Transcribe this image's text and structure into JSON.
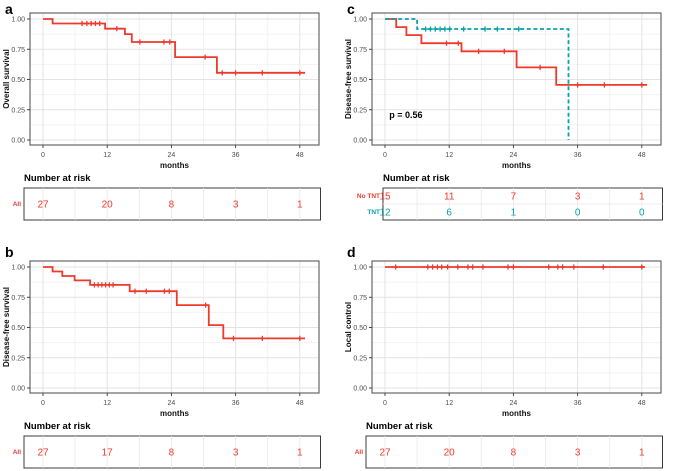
{
  "colors": {
    "red": "#EE3A2C",
    "teal": "#09A1AB",
    "axis_text": "#4d4d4d",
    "grid_major": "#e3e3e3",
    "grid_minor": "#f2f2f2",
    "panel_border": "#595959",
    "table_border": "#3c3c3c",
    "table_grid": "#e8e8e8"
  },
  "chart_data": [
    {
      "panel": "a",
      "type": "line",
      "subtype": "kaplan-meier-step",
      "ylabel": "Overall survival",
      "xlabel": "months",
      "x_ticks": [
        0,
        12,
        24,
        36,
        48
      ],
      "y_tick_labels": [
        "0.00",
        "0.25",
        "0.50",
        "0.75",
        "1.00"
      ],
      "xlim": [
        -2.4,
        51.6
      ],
      "ylim": [
        0,
        1
      ],
      "grid": true,
      "p_label": null,
      "series": [
        {
          "name": "All",
          "color_key": "red",
          "dashed": false,
          "steps": [
            [
              0,
              1
            ],
            [
              1.8,
              1
            ],
            [
              1.8,
              0.963
            ],
            [
              11.6,
              0.963
            ],
            [
              11.6,
              0.92
            ],
            [
              15.3,
              0.92
            ],
            [
              15.3,
              0.875
            ],
            [
              16.6,
              0.875
            ],
            [
              16.6,
              0.81
            ],
            [
              24.7,
              0.81
            ],
            [
              24.7,
              0.685
            ],
            [
              32.5,
              0.685
            ],
            [
              32.5,
              0.555
            ],
            [
              49,
              0.555
            ]
          ],
          "censors": [
            [
              7.3,
              0.963
            ],
            [
              8.2,
              0.963
            ],
            [
              9,
              0.963
            ],
            [
              9.8,
              0.963
            ],
            [
              10.6,
              0.963
            ],
            [
              13.8,
              0.92
            ],
            [
              18.1,
              0.81
            ],
            [
              22.6,
              0.81
            ],
            [
              23.7,
              0.81
            ],
            [
              30.3,
              0.685
            ],
            [
              33.5,
              0.555
            ],
            [
              36,
              0.555
            ],
            [
              41,
              0.555
            ],
            [
              48,
              0.555
            ]
          ]
        }
      ],
      "risk_table": {
        "title": "Number at risk",
        "rows": [
          {
            "label": "All",
            "color_key": "red",
            "values": [
              27,
              20,
              8,
              3,
              1
            ]
          }
        ]
      }
    },
    {
      "panel": "c",
      "type": "line",
      "subtype": "kaplan-meier-step",
      "ylabel": "Disease-free survival",
      "xlabel": "months",
      "x_ticks": [
        0,
        12,
        24,
        36,
        48
      ],
      "y_tick_labels": [
        "0.00",
        "0.25",
        "0.50",
        "0.75",
        "1.00"
      ],
      "xlim": [
        -2.4,
        51.6
      ],
      "ylim": [
        0,
        1
      ],
      "grid": true,
      "p_label": {
        "text": "p = 0.56",
        "x": 0.8,
        "y": 0.18
      },
      "series": [
        {
          "name": "No TNT",
          "color_key": "red",
          "dashed": false,
          "steps": [
            [
              0,
              1
            ],
            [
              2.1,
              1
            ],
            [
              2.1,
              0.933
            ],
            [
              4,
              0.933
            ],
            [
              4,
              0.867
            ],
            [
              6.8,
              0.867
            ],
            [
              6.8,
              0.8
            ],
            [
              14.3,
              0.8
            ],
            [
              14.3,
              0.733
            ],
            [
              24.6,
              0.733
            ],
            [
              24.6,
              0.6
            ],
            [
              32,
              0.6
            ],
            [
              32,
              0.455
            ],
            [
              49,
              0.455
            ]
          ],
          "censors": [
            [
              11.5,
              0.8
            ],
            [
              13.7,
              0.8
            ],
            [
              17.5,
              0.733
            ],
            [
              22.3,
              0.733
            ],
            [
              29,
              0.6
            ],
            [
              36,
              0.455
            ],
            [
              41,
              0.455
            ],
            [
              48,
              0.455
            ]
          ]
        },
        {
          "name": "TNT",
          "color_key": "teal",
          "dashed": true,
          "steps": [
            [
              0,
              1
            ],
            [
              6,
              1
            ],
            [
              6,
              0.917
            ],
            [
              34.3,
              0.917
            ],
            [
              34.3,
              0
            ]
          ],
          "censors": [
            [
              7.6,
              0.917
            ],
            [
              8.5,
              0.917
            ],
            [
              9.4,
              0.917
            ],
            [
              10.3,
              0.917
            ],
            [
              11.2,
              0.917
            ],
            [
              12.1,
              0.917
            ],
            [
              14.7,
              0.917
            ],
            [
              18.7,
              0.917
            ],
            [
              21,
              0.917
            ],
            [
              25,
              0.917
            ]
          ]
        }
      ],
      "risk_table": {
        "title": "Number at risk",
        "rows": [
          {
            "label": "No TNT",
            "color_key": "red",
            "values": [
              15,
              11,
              7,
              3,
              1
            ]
          },
          {
            "label": "TNT",
            "color_key": "teal",
            "values": [
              12,
              6,
              1,
              0,
              0
            ]
          }
        ]
      }
    },
    {
      "panel": "b",
      "type": "line",
      "subtype": "kaplan-meier-step",
      "ylabel": "Disease-free survival",
      "xlabel": "months",
      "x_ticks": [
        0,
        12,
        24,
        36,
        48
      ],
      "y_tick_labels": [
        "0.00",
        "0.25",
        "0.50",
        "0.75",
        "1.00"
      ],
      "xlim": [
        -2.4,
        51.6
      ],
      "ylim": [
        0,
        1
      ],
      "grid": true,
      "p_label": null,
      "series": [
        {
          "name": "All",
          "color_key": "red",
          "dashed": false,
          "steps": [
            [
              0,
              1
            ],
            [
              1.8,
              1
            ],
            [
              1.8,
              0.963
            ],
            [
              3.6,
              0.963
            ],
            [
              3.6,
              0.926
            ],
            [
              5.9,
              0.926
            ],
            [
              5.9,
              0.889
            ],
            [
              8.8,
              0.889
            ],
            [
              8.8,
              0.852
            ],
            [
              16.2,
              0.852
            ],
            [
              16.2,
              0.8
            ],
            [
              25,
              0.8
            ],
            [
              25,
              0.685
            ],
            [
              31,
              0.685
            ],
            [
              31,
              0.52
            ],
            [
              33.7,
              0.52
            ],
            [
              33.7,
              0.41
            ],
            [
              49,
              0.41
            ]
          ],
          "censors": [
            [
              9.6,
              0.852
            ],
            [
              10.3,
              0.852
            ],
            [
              11,
              0.852
            ],
            [
              11.7,
              0.852
            ],
            [
              12.4,
              0.852
            ],
            [
              13.1,
              0.852
            ],
            [
              17.2,
              0.8
            ],
            [
              19.3,
              0.8
            ],
            [
              22.7,
              0.8
            ],
            [
              23.6,
              0.8
            ],
            [
              30.4,
              0.685
            ],
            [
              35.6,
              0.41
            ],
            [
              41,
              0.41
            ],
            [
              48,
              0.41
            ]
          ]
        }
      ],
      "risk_table": {
        "title": "Number at risk",
        "rows": [
          {
            "label": "All",
            "color_key": "red",
            "values": [
              27,
              17,
              8,
              3,
              1
            ]
          }
        ]
      }
    },
    {
      "panel": "d",
      "type": "line",
      "subtype": "kaplan-meier-step",
      "ylabel": "Local control",
      "xlabel": "months",
      "x_ticks": [
        0,
        12,
        24,
        36,
        48
      ],
      "y_tick_labels": [
        "0.00",
        "0.25",
        "0.50",
        "0.75",
        "1.00"
      ],
      "xlim": [
        -2.4,
        51.6
      ],
      "ylim": [
        0,
        1
      ],
      "grid": true,
      "p_label": null,
      "series": [
        {
          "name": "All",
          "color_key": "red",
          "dashed": false,
          "steps": [
            [
              0,
              1
            ],
            [
              48.6,
              1
            ]
          ],
          "censors": [
            [
              2,
              1
            ],
            [
              8,
              1
            ],
            [
              8.9,
              1
            ],
            [
              9.8,
              1
            ],
            [
              10.6,
              1
            ],
            [
              11.7,
              1
            ],
            [
              13.6,
              1
            ],
            [
              15.5,
              1
            ],
            [
              16.4,
              1
            ],
            [
              18.3,
              1
            ],
            [
              23,
              1
            ],
            [
              24,
              1
            ],
            [
              30.6,
              1
            ],
            [
              32.3,
              1
            ],
            [
              33.2,
              1
            ],
            [
              35.3,
              1
            ],
            [
              40.8,
              1
            ],
            [
              48,
              1
            ]
          ]
        }
      ],
      "risk_table": {
        "title": "Number at risk",
        "rows": [
          {
            "label": "All",
            "color_key": "red",
            "values": [
              27,
              20,
              8,
              3,
              1
            ]
          }
        ]
      }
    }
  ]
}
